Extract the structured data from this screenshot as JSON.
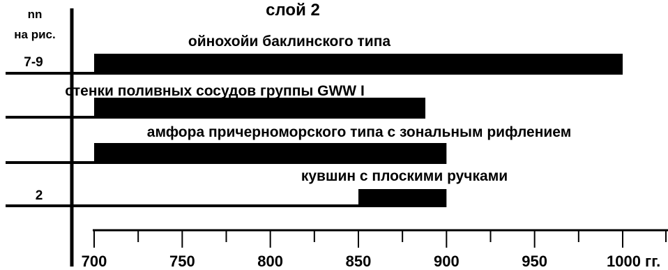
{
  "chart_data": {
    "type": "bar",
    "orientation": "horizontal",
    "title": "слой 2",
    "row_header": [
      "nn",
      "на рис."
    ],
    "xunit": "гг.",
    "xlim": [
      700,
      1000
    ],
    "xticks": [
      700,
      750,
      800,
      850,
      900,
      950,
      1000
    ],
    "xtick_labels": [
      "700",
      "750",
      "800",
      "850",
      "900",
      "950",
      "1000 гг."
    ],
    "grid": false,
    "bar_color": "#000000",
    "rows": [
      {
        "nn": "7-9",
        "label": "ойнохойи баклинского типа",
        "start": 700,
        "end": 1000
      },
      {
        "nn": "",
        "label": "стенки поливных сосудов группы GWW I",
        "start": 700,
        "end": 888
      },
      {
        "nn": "",
        "label": "амфора причерноморского типа с зональным рифлением",
        "start": 700,
        "end": 900
      },
      {
        "nn": "2",
        "label": "кувшин с плоскими ручками",
        "start": 850,
        "end": 900
      }
    ]
  }
}
